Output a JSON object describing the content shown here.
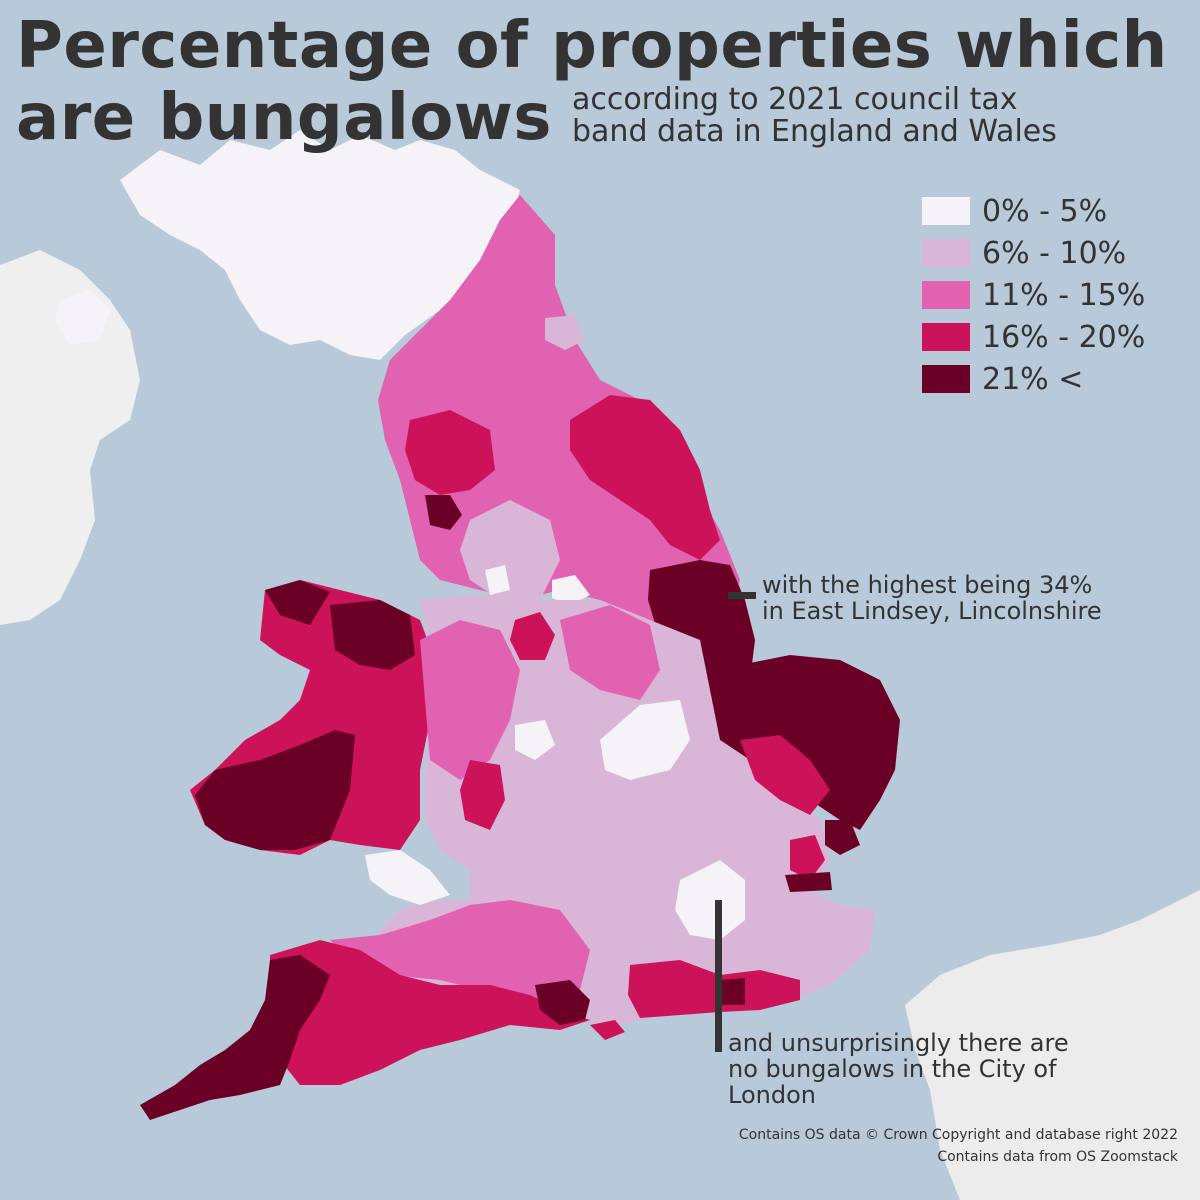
{
  "title": {
    "line1": "Percentage of properties which",
    "line2": "are bungalows"
  },
  "subtitle": {
    "line1": "according to 2021 council tax",
    "line2": "band data in England and Wales"
  },
  "legend": [
    {
      "label": "0% - 5%",
      "color": "#f6f3f8"
    },
    {
      "label": "6% - 10%",
      "color": "#d9b6d8"
    },
    {
      "label": "11% - 15%",
      "color": "#e062b0"
    },
    {
      "label": "16% - 20%",
      "color": "#cc1258"
    },
    {
      "label": "21% <",
      "color": "#6a0026"
    }
  ],
  "annotations": {
    "highest": {
      "line1": "with the highest being 34%",
      "line2": "in East Lindsey, Lincolnshire"
    },
    "city_of_london": {
      "line1": "and unsurprisingly there are",
      "line2": "no bungalows in the City of",
      "line3": "London"
    }
  },
  "credits": {
    "line1": "Contains OS data © Crown Copyright and database right 2022",
    "line2": "Contains data from OS Zoomstack"
  },
  "colors": {
    "sea": "#b8c9d9",
    "land_other": "#eeeeee",
    "scotland": "#f6f3f8",
    "text": "#333333"
  }
}
